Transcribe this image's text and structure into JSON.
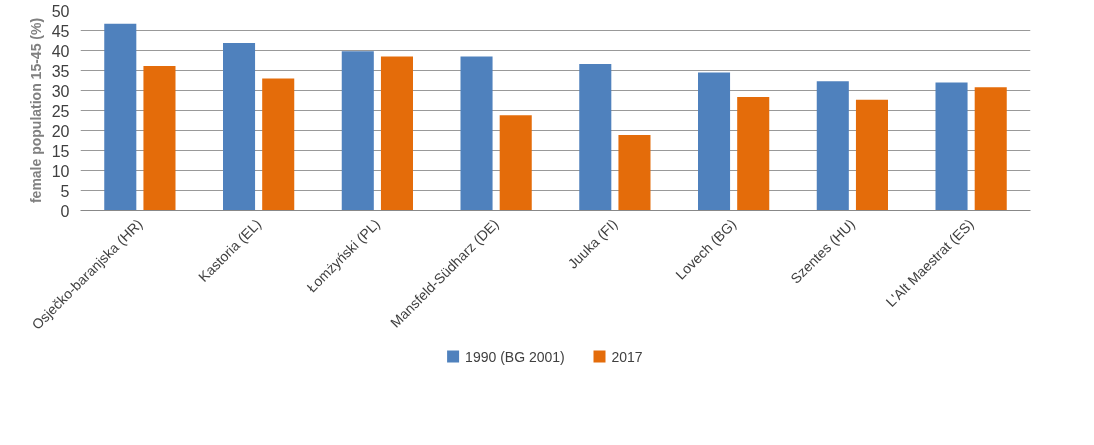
{
  "chart_data": {
    "type": "bar",
    "ylabel": "female population 15-45 (%)",
    "categories": [
      "Osječko-baranjska (HR)",
      "Kastoria (EL)",
      "Łomżyński (PL)",
      "Mansfeld-Südharz (DE)",
      "Juuka (FI)",
      "Lovech (BG)",
      "Szentes (HU)",
      "L'Alt Maestrat (ES)"
    ],
    "series": [
      {
        "name": "1990 (BG 2001)",
        "color": "#4f81bd",
        "values": [
          46.7,
          41.9,
          39.8,
          38.5,
          36.6,
          34.5,
          32.3,
          32.0
        ]
      },
      {
        "name": "2017",
        "color": "#e46c0a",
        "values": [
          36.1,
          33.0,
          38.5,
          23.8,
          18.9,
          28.4,
          27.7,
          30.8
        ]
      }
    ],
    "ylim": [
      0,
      50
    ],
    "yticks": [
      0,
      5,
      10,
      15,
      20,
      25,
      30,
      35,
      40,
      45,
      50
    ],
    "grid": "y",
    "legend": "bottom"
  }
}
